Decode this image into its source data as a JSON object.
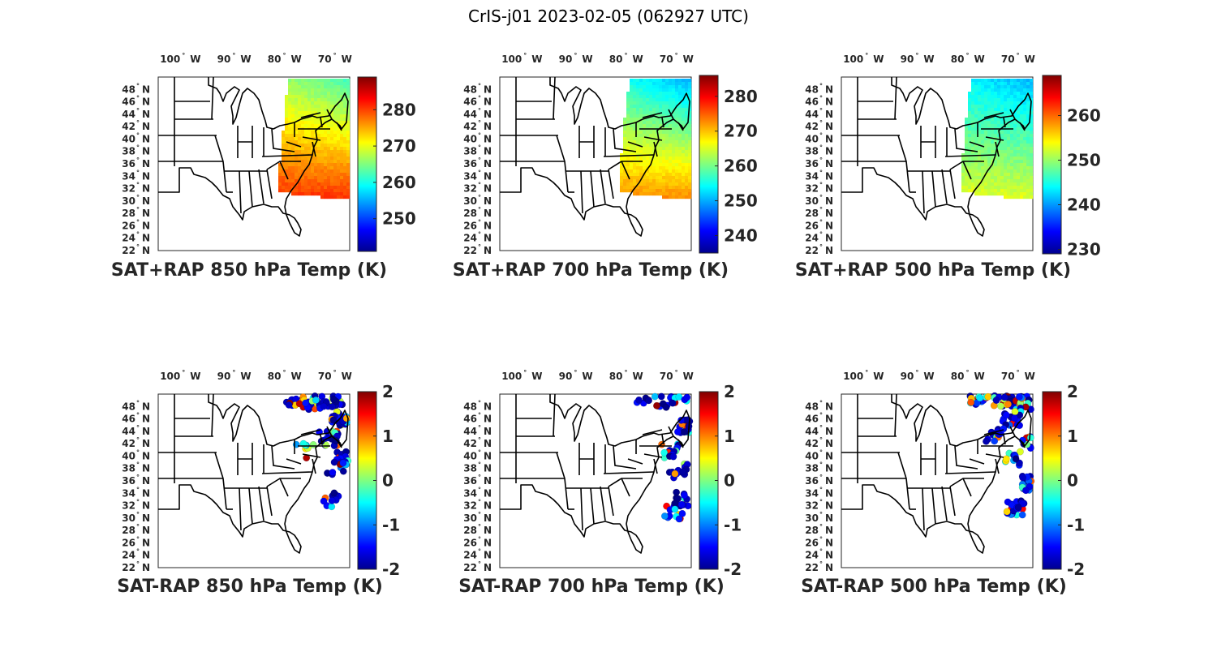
{
  "figure": {
    "title": "CrIS-j01 2023-02-05 (062927 UTC)"
  },
  "axes": {
    "lon_ticks": [
      {
        "deg": "100",
        "hemi": "W",
        "lon": -100
      },
      {
        "deg": "90",
        "hemi": "W",
        "lon": -90
      },
      {
        "deg": "80",
        "hemi": "W",
        "lon": -80
      },
      {
        "deg": "70",
        "hemi": "W",
        "lon": -70
      }
    ],
    "lat_ticks": [
      {
        "deg": "48",
        "hemi": "N",
        "lat": 48
      },
      {
        "deg": "46",
        "hemi": "N",
        "lat": 46
      },
      {
        "deg": "44",
        "hemi": "N",
        "lat": 44
      },
      {
        "deg": "42",
        "hemi": "N",
        "lat": 42
      },
      {
        "deg": "40",
        "hemi": "N",
        "lat": 40
      },
      {
        "deg": "38",
        "hemi": "N",
        "lat": 38
      },
      {
        "deg": "36",
        "hemi": "N",
        "lat": 36
      },
      {
        "deg": "34",
        "hemi": "N",
        "lat": 34
      },
      {
        "deg": "32",
        "hemi": "N",
        "lat": 32
      },
      {
        "deg": "30",
        "hemi": "N",
        "lat": 30
      },
      {
        "deg": "28",
        "hemi": "N",
        "lat": 28
      },
      {
        "deg": "26",
        "hemi": "N",
        "lat": 26
      },
      {
        "deg": "24",
        "hemi": "N",
        "lat": 24
      },
      {
        "deg": "22",
        "hemi": "N",
        "lat": 22
      }
    ],
    "lon_range": [
      -106,
      -68
    ],
    "lat_range": [
      22,
      50
    ],
    "colormap": "jet"
  },
  "panels": [
    {
      "id": "sat-rap-850",
      "title": "SAT+RAP 850 hPa Temp (K)",
      "field": "temperature",
      "level_hpa": 850,
      "colorbar": {
        "min": 241,
        "max": 289,
        "ticks": [
          "250",
          "260",
          "270",
          "280"
        ]
      },
      "swath_value_range": [
        262,
        281
      ]
    },
    {
      "id": "sat-rap-700",
      "title": "SAT+RAP 700 hPa Temp (K)",
      "field": "temperature",
      "level_hpa": 700,
      "colorbar": {
        "min": 235,
        "max": 286,
        "ticks": [
          "240",
          "250",
          "260",
          "270",
          "280"
        ]
      },
      "swath_value_range": [
        250,
        273
      ]
    },
    {
      "id": "sat-rap-500",
      "title": "SAT+RAP 500 hPa Temp (K)",
      "field": "temperature",
      "level_hpa": 500,
      "colorbar": {
        "min": 229,
        "max": 269,
        "ticks": [
          "230",
          "240",
          "250",
          "260"
        ]
      },
      "swath_value_range": [
        241,
        253
      ]
    },
    {
      "id": "sat-minus-rap-850",
      "title": "SAT-RAP 850 hPa Temp (K)",
      "field": "temperature difference",
      "level_hpa": 850,
      "colorbar": {
        "min": -2,
        "max": 2,
        "ticks": [
          "2",
          "1",
          "0",
          "-1",
          "-2"
        ]
      }
    },
    {
      "id": "sat-minus-rap-700",
      "title": "SAT-RAP 700 hPa Temp (K)",
      "field": "temperature difference",
      "level_hpa": 700,
      "colorbar": {
        "min": -2,
        "max": 2,
        "ticks": [
          "2",
          "1",
          "0",
          "-1",
          "-2"
        ]
      }
    },
    {
      "id": "sat-minus-rap-500",
      "title": "SAT-RAP 500 hPa Temp (K)",
      "field": "temperature difference",
      "level_hpa": 500,
      "colorbar": {
        "min": -2,
        "max": 2,
        "ticks": [
          "2",
          "1",
          "0",
          "-1",
          "-2"
        ]
      }
    }
  ]
}
